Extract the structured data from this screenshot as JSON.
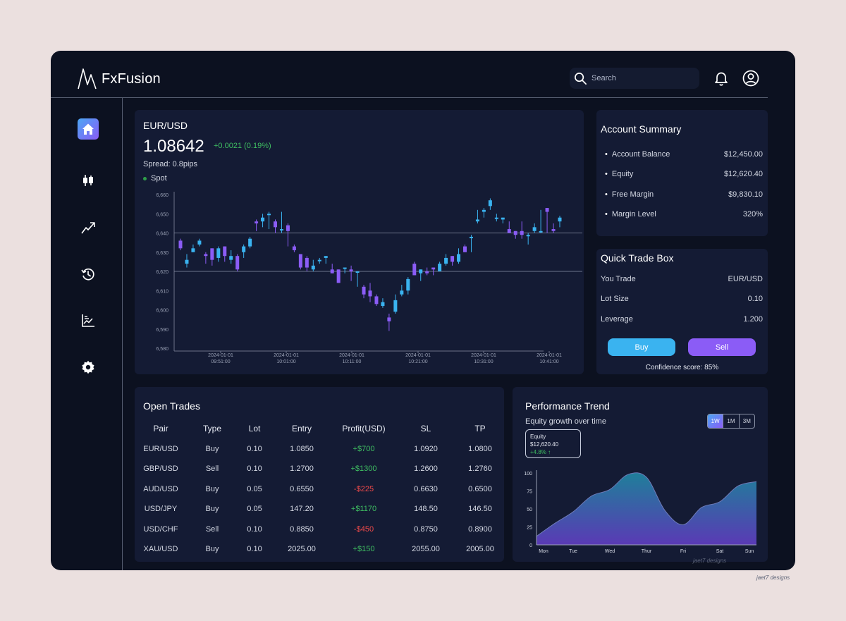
{
  "app": {
    "name": "FxFusion",
    "search_placeholder": "Search"
  },
  "nav": [
    {
      "icon": "home-icon",
      "active": true
    },
    {
      "icon": "candlestick-icon",
      "active": false
    },
    {
      "icon": "trend-up-icon",
      "active": false
    },
    {
      "icon": "history-icon",
      "active": false
    },
    {
      "icon": "analytics-icon",
      "active": false
    },
    {
      "icon": "settings-icon",
      "active": false
    }
  ],
  "market": {
    "pair": "EUR/USD",
    "price": "1.08642",
    "change": "+0.0021 (0.19%)",
    "spread": "Spread: 0.8pips",
    "mode": "Spot"
  },
  "chart_data": [
    {
      "type": "candlestick",
      "y_ticks": [
        "6,580",
        "6,590",
        "6,600",
        "6,610",
        "6,620",
        "6,630",
        "6,640",
        "6,650",
        "6,660"
      ],
      "ylim": [
        6580,
        6660
      ],
      "x_ticks": [
        [
          "2024-01-01",
          "09:51:00"
        ],
        [
          "2024-01-01",
          "10:01:00"
        ],
        [
          "2024-01-01",
          "10:11:00"
        ],
        [
          "2024-01-01",
          "10:21:00"
        ],
        [
          "2024-01-01",
          "10:31:00"
        ],
        [
          "2024-01-01",
          "10:41:00"
        ]
      ],
      "reference_lines": [
        6640,
        6620
      ],
      "colors": {
        "up": "#3ab3f0",
        "down": "#8b5cf6"
      },
      "candles": [
        [
          6636,
          6632,
          6637,
          6631
        ],
        [
          6624,
          6626,
          6629,
          6622
        ],
        [
          6630,
          6632,
          6634,
          6630
        ],
        [
          6634,
          6636,
          6637,
          6633
        ],
        [
          6629,
          6628,
          6630,
          6624
        ],
        [
          6632,
          6626,
          6632,
          6623
        ],
        [
          6627,
          6632,
          6633,
          6625
        ],
        [
          6633,
          6628,
          6633,
          6625
        ],
        [
          6626,
          6628,
          6631,
          6624
        ],
        [
          6628,
          6621,
          6629,
          6620
        ],
        [
          6630,
          6633,
          6634,
          6627
        ],
        [
          6633,
          6637,
          6638,
          6632
        ],
        [
          6646,
          6645,
          6647,
          6641
        ],
        [
          6646,
          6648,
          6650,
          6643
        ],
        [
          6650,
          6650,
          6651,
          6642
        ],
        [
          6646,
          6643,
          6647,
          6640
        ],
        [
          6642,
          6642,
          6651,
          6640
        ],
        [
          6644,
          6641,
          6645,
          6633
        ],
        [
          6633,
          6631,
          6634,
          6630
        ],
        [
          6629,
          6622,
          6629,
          6621
        ],
        [
          6627,
          6622,
          6628,
          6620
        ],
        [
          6621,
          6623,
          6626,
          6620
        ],
        [
          6626,
          6626,
          6627,
          6624
        ],
        [
          6627,
          6628,
          6628,
          6624
        ],
        [
          6621,
          6619,
          6624,
          6619
        ],
        [
          6621,
          6614,
          6621,
          6614
        ],
        [
          6622,
          6622,
          6622,
          6619
        ],
        [
          6621,
          6620,
          6623,
          6615
        ],
        [
          6620,
          6620,
          6620,
          6612
        ],
        [
          6612,
          6608,
          6613,
          6606
        ],
        [
          6610,
          6607,
          6614,
          6604
        ],
        [
          6607,
          6603,
          6608,
          6602
        ],
        [
          6602,
          6604,
          6606,
          6601
        ],
        [
          6596,
          6594,
          6598,
          6589
        ],
        [
          6599,
          6605,
          6608,
          6598
        ],
        [
          6608,
          6610,
          6613,
          6607
        ],
        [
          6610,
          6616,
          6617,
          6608
        ],
        [
          6624,
          6618,
          6625,
          6618
        ],
        [
          6619,
          6621,
          6621,
          6615
        ],
        [
          6620,
          6619,
          6622,
          6618
        ],
        [
          6622,
          6621,
          6622,
          6618
        ],
        [
          6620,
          6624,
          6625,
          6620
        ],
        [
          6624,
          6627,
          6629,
          6623
        ],
        [
          6628,
          6625,
          6628,
          6623
        ],
        [
          6625,
          6629,
          6632,
          6624
        ],
        [
          6633,
          6630,
          6634,
          6630
        ],
        [
          6638,
          6638,
          6639,
          6630
        ],
        [
          6646,
          6647,
          6652,
          6645
        ],
        [
          6651,
          6652,
          6653,
          6648
        ],
        [
          6654,
          6657,
          6658,
          6652
        ],
        [
          6648,
          6648,
          6650,
          6646
        ],
        [
          6647,
          6648,
          6648,
          6645
        ],
        [
          6642,
          6640,
          6646,
          6640
        ],
        [
          6641,
          6639,
          6641,
          6637
        ],
        [
          6641,
          6639,
          6646,
          6637
        ],
        [
          6639,
          6639,
          6640,
          6634
        ],
        [
          6641,
          6643,
          6645,
          6640
        ],
        [
          6641,
          6641,
          6652,
          6640
        ],
        [
          6653,
          6651,
          6653,
          6640
        ],
        [
          6642,
          6641,
          6645,
          6640
        ],
        [
          6646,
          6648,
          6649,
          6643
        ]
      ]
    },
    {
      "type": "area",
      "title": "Performance Trend",
      "subtitle": "Equity growth over time",
      "categories": [
        "Mon",
        "Tue",
        "Wed",
        "Thur",
        "Fri",
        "Sat",
        "Sun"
      ],
      "x": [
        0,
        0.5,
        1,
        1.5,
        2,
        2.5,
        3,
        3.5,
        4,
        4.5,
        5,
        5.5,
        6
      ],
      "values": [
        12,
        30,
        46,
        68,
        77,
        98,
        94,
        48,
        28,
        52,
        60,
        82,
        88
      ],
      "y_ticks": [
        0,
        25,
        50,
        75,
        100
      ],
      "ylim": [
        0,
        100
      ],
      "colors": {
        "top": "#1f7f9a",
        "bottom": "#5a3ab5",
        "line": "#6e7ab8"
      }
    }
  ],
  "account": {
    "title": "Account Summary",
    "rows": [
      {
        "label": "Account Balance",
        "value": "$12,450.00"
      },
      {
        "label": "Equity",
        "value": "$12,620.40"
      },
      {
        "label": "Free Margin",
        "value": "$9,830.10"
      },
      {
        "label": "Margin Level",
        "value": "320%"
      }
    ]
  },
  "quick_trade": {
    "title": "Quick Trade Box",
    "rows": [
      {
        "label": "You Trade",
        "value": "EUR/USD"
      },
      {
        "label": "Lot Size",
        "value": "0.10"
      },
      {
        "label": "Leverage",
        "value": "1.200"
      }
    ],
    "buy_label": "Buy",
    "sell_label": "Sell",
    "confidence": "Confidence score: 85%"
  },
  "open_trades": {
    "title": "Open Trades",
    "headers": [
      "Pair",
      "Type",
      "Lot",
      "Entry",
      "Profit(USD)",
      "SL",
      "TP"
    ],
    "rows": [
      [
        "EUR/USD",
        "Buy",
        "0.10",
        "1.0850",
        "+$700",
        "1.0920",
        "1.0800"
      ],
      [
        "GBP/USD",
        "Sell",
        "0.10",
        "1.2700",
        "+$1300",
        "1.2600",
        "1.2760"
      ],
      [
        "AUD/USD",
        "Buy",
        "0.05",
        "0.6550",
        "-$225",
        "0.6630",
        "0.6500"
      ],
      [
        "USD/JPY",
        "Buy",
        "0.05",
        "147.20",
        "+$1170",
        "148.50",
        "146.50"
      ],
      [
        "USD/CHF",
        "Sell",
        "0.10",
        "0.8850",
        "-$450",
        "0.8750",
        "0.8900"
      ],
      [
        "XAU/USD",
        "Buy",
        "0.10",
        "2025.00",
        "+$150",
        "2055.00",
        "2005.00"
      ]
    ]
  },
  "performance": {
    "title": "Performance Trend",
    "subtitle": "Equity growth over time",
    "ranges": [
      "1W",
      "1M",
      "3M"
    ],
    "active_range": "1W",
    "equity_label": "Equity",
    "equity_value": "$12,620.40",
    "equity_change": "+4.8% ↑"
  },
  "watermark": "jaet7 designs"
}
